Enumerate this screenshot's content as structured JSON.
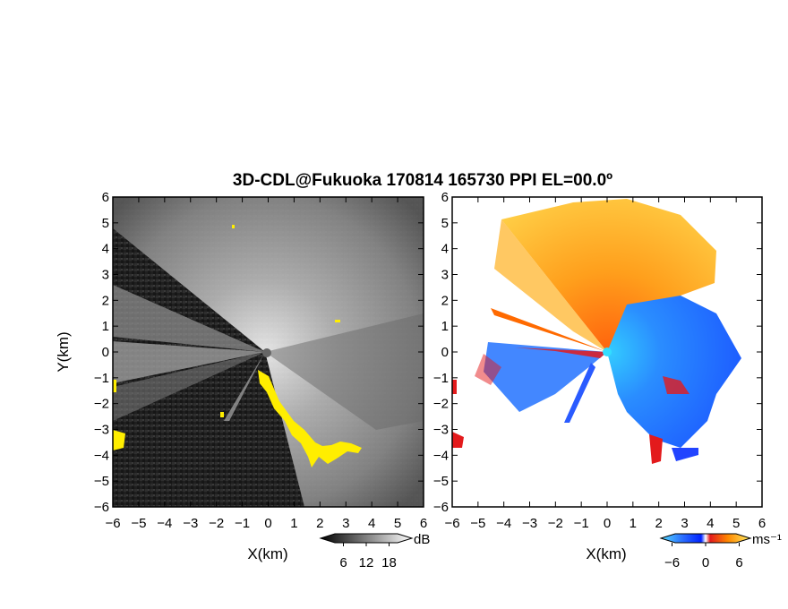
{
  "title": "3D-CDL@Fukuoka 170814 165730 PPI EL=00.0º",
  "colors": {
    "frame": "#000000",
    "overlay_yellow": "#ffee00",
    "ground": "#1c1c1c",
    "vel_negative": "#1e6bff",
    "vel_positive": "#ff7a00",
    "vel_extreme_pos": "#e31a1c",
    "vel_extreme_neg": "#0a2aff"
  },
  "chart_data": [
    {
      "type": "heatmap",
      "name": "backscatter-panel",
      "xlabel": "X(km)",
      "ylabel": "Y(km)",
      "xlim": [
        -6,
        6
      ],
      "ylim": [
        -6,
        6
      ],
      "xticks": [
        "−6",
        "−5",
        "−4",
        "−3",
        "−2",
        "−1",
        "0",
        "1",
        "2",
        "3",
        "4",
        "5",
        "6"
      ],
      "yticks": [
        "−6",
        "−5",
        "−4",
        "−3",
        "−2",
        "−1",
        "0",
        "1",
        "2",
        "3",
        "4",
        "5",
        "6"
      ],
      "colorbar": {
        "unit": "dB",
        "ticks": [
          "6",
          "12",
          "18"
        ],
        "range": [
          0,
          24
        ],
        "palette": "grayscale"
      }
    },
    {
      "type": "heatmap",
      "name": "doppler-velocity-panel",
      "xlabel": "X(km)",
      "ylabel": "",
      "xlim": [
        -6,
        6
      ],
      "ylim": [
        -6,
        6
      ],
      "xticks": [
        "−6",
        "−5",
        "−4",
        "−3",
        "−2",
        "−1",
        "0",
        "1",
        "2",
        "3",
        "4",
        "5",
        "6"
      ],
      "yticks": [
        "−6",
        "−5",
        "−4",
        "−3",
        "−2",
        "−1",
        "0",
        "1",
        "2",
        "3",
        "4",
        "5",
        "6"
      ],
      "colorbar": {
        "unit": "ms⁻¹",
        "ticks": [
          "−6",
          "0",
          "6"
        ],
        "range": [
          -8,
          8
        ],
        "palette": "blue-white-orange"
      }
    }
  ]
}
